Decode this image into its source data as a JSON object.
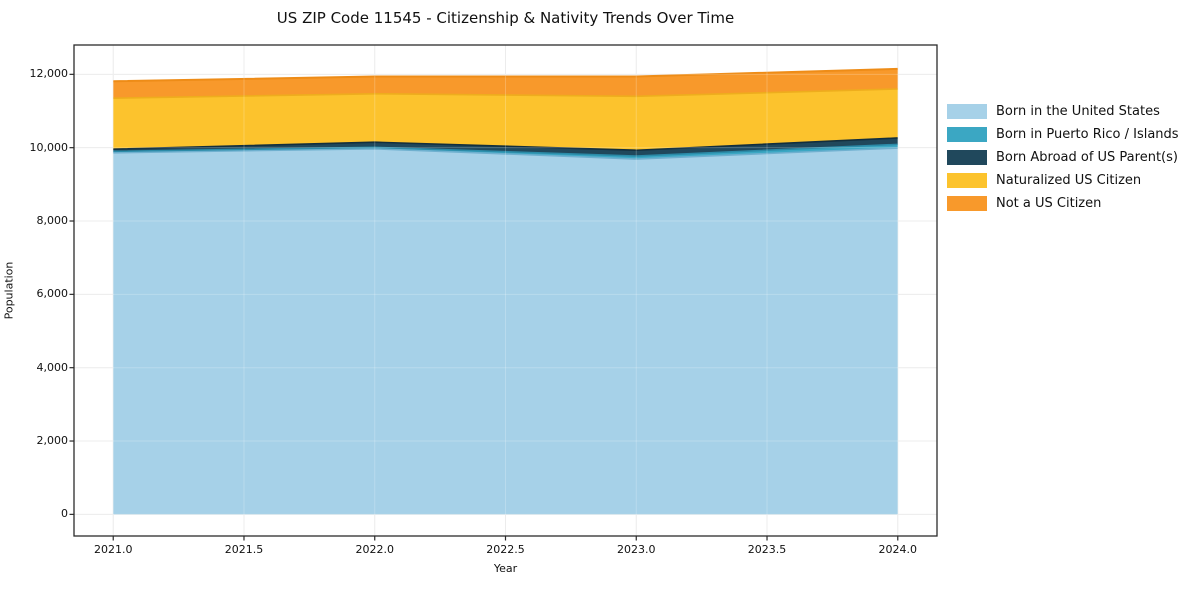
{
  "title": "US ZIP Code 11545 - Citizenship & Nativity Trends Over Time",
  "chart_data": {
    "type": "area",
    "stacked": true,
    "title": "US ZIP Code 11545 - Citizenship & Nativity Trends Over Time",
    "xlabel": "Year",
    "ylabel": "Population",
    "x": [
      2021,
      2022,
      2023,
      2024
    ],
    "series": [
      {
        "name": "Born in the United States",
        "color": "#a6d1e8",
        "edge": "#6fb0cf",
        "values": [
          9860,
          9970,
          9690,
          9990
        ]
      },
      {
        "name": "Born in Puerto Rico / Islands",
        "color": "#3ba7c3",
        "edge": "#2b8ba8",
        "values": [
          40,
          40,
          80,
          100
        ]
      },
      {
        "name": "Born Abroad of US Parent(s)",
        "color": "#20485c",
        "edge": "#132f3e",
        "values": [
          60,
          140,
          160,
          175
        ]
      },
      {
        "name": "Naturalized US Citizen",
        "color": "#fcc32d",
        "edge": "#eead1d",
        "values": [
          1390,
          1320,
          1470,
          1335
        ]
      },
      {
        "name": "Not a US Citizen",
        "color": "#f8992b",
        "edge": "#ee8c17",
        "values": [
          460,
          470,
          540,
          550
        ]
      }
    ],
    "x_ticks": [
      {
        "value": 2021.0,
        "label": "2021.0"
      },
      {
        "value": 2021.5,
        "label": "2021.5"
      },
      {
        "value": 2022.0,
        "label": "2022.0"
      },
      {
        "value": 2022.5,
        "label": "2022.5"
      },
      {
        "value": 2023.0,
        "label": "2023.0"
      },
      {
        "value": 2023.5,
        "label": "2023.5"
      },
      {
        "value": 2024.0,
        "label": "2024.0"
      }
    ],
    "y_ticks": [
      {
        "value": 0,
        "label": "0"
      },
      {
        "value": 2000,
        "label": "2,000"
      },
      {
        "value": 4000,
        "label": "4,000"
      },
      {
        "value": 6000,
        "label": "6,000"
      },
      {
        "value": 8000,
        "label": "8,000"
      },
      {
        "value": 10000,
        "label": "10,000"
      },
      {
        "value": 12000,
        "label": "12,000"
      }
    ],
    "xlim": [
      2020.85,
      2024.15
    ],
    "ylim": [
      -590,
      12800
    ],
    "grid": true,
    "legend_position": "right-outside"
  },
  "style_colors": {
    "grid": "#e7e7e7",
    "grid_over_area": "rgba(255,255,255,0.22)",
    "spine": "#2b2b2b",
    "background": "#ffffff"
  }
}
